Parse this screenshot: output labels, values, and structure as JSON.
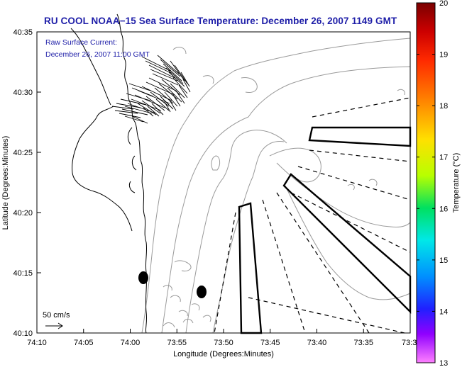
{
  "title": "RU COOL  NOAA−15  Sea Surface Temperature:  December 26, 2007 1149 GMT",
  "current": {
    "label_line1": "Raw Surface Current:",
    "label_line2": "December 26, 2007 11:00 GMT",
    "scale_label": "50 cm/s"
  },
  "axes": {
    "xlabel": "Longitude (Degrees:Minutes)",
    "ylabel": "Latitude (Degrees:Minutes)",
    "x_ticks": [
      "74:10",
      "74:05",
      "74:00",
      "73:55",
      "73:50",
      "73:45",
      "73:40",
      "73:35",
      "73:3"
    ],
    "y_ticks": [
      "40:35",
      "40:30",
      "40:25",
      "40:20",
      "40:15",
      "40:10"
    ]
  },
  "colorbar": {
    "label": "Temperature (°C)",
    "min": 13,
    "max": 20,
    "ticks": [
      "20",
      "19",
      "18",
      "17",
      "16",
      "15",
      "14",
      "13"
    ]
  },
  "colors": {
    "title": "#1e1ea8",
    "contour": "#9a9a9a",
    "frame": "#000000"
  }
}
